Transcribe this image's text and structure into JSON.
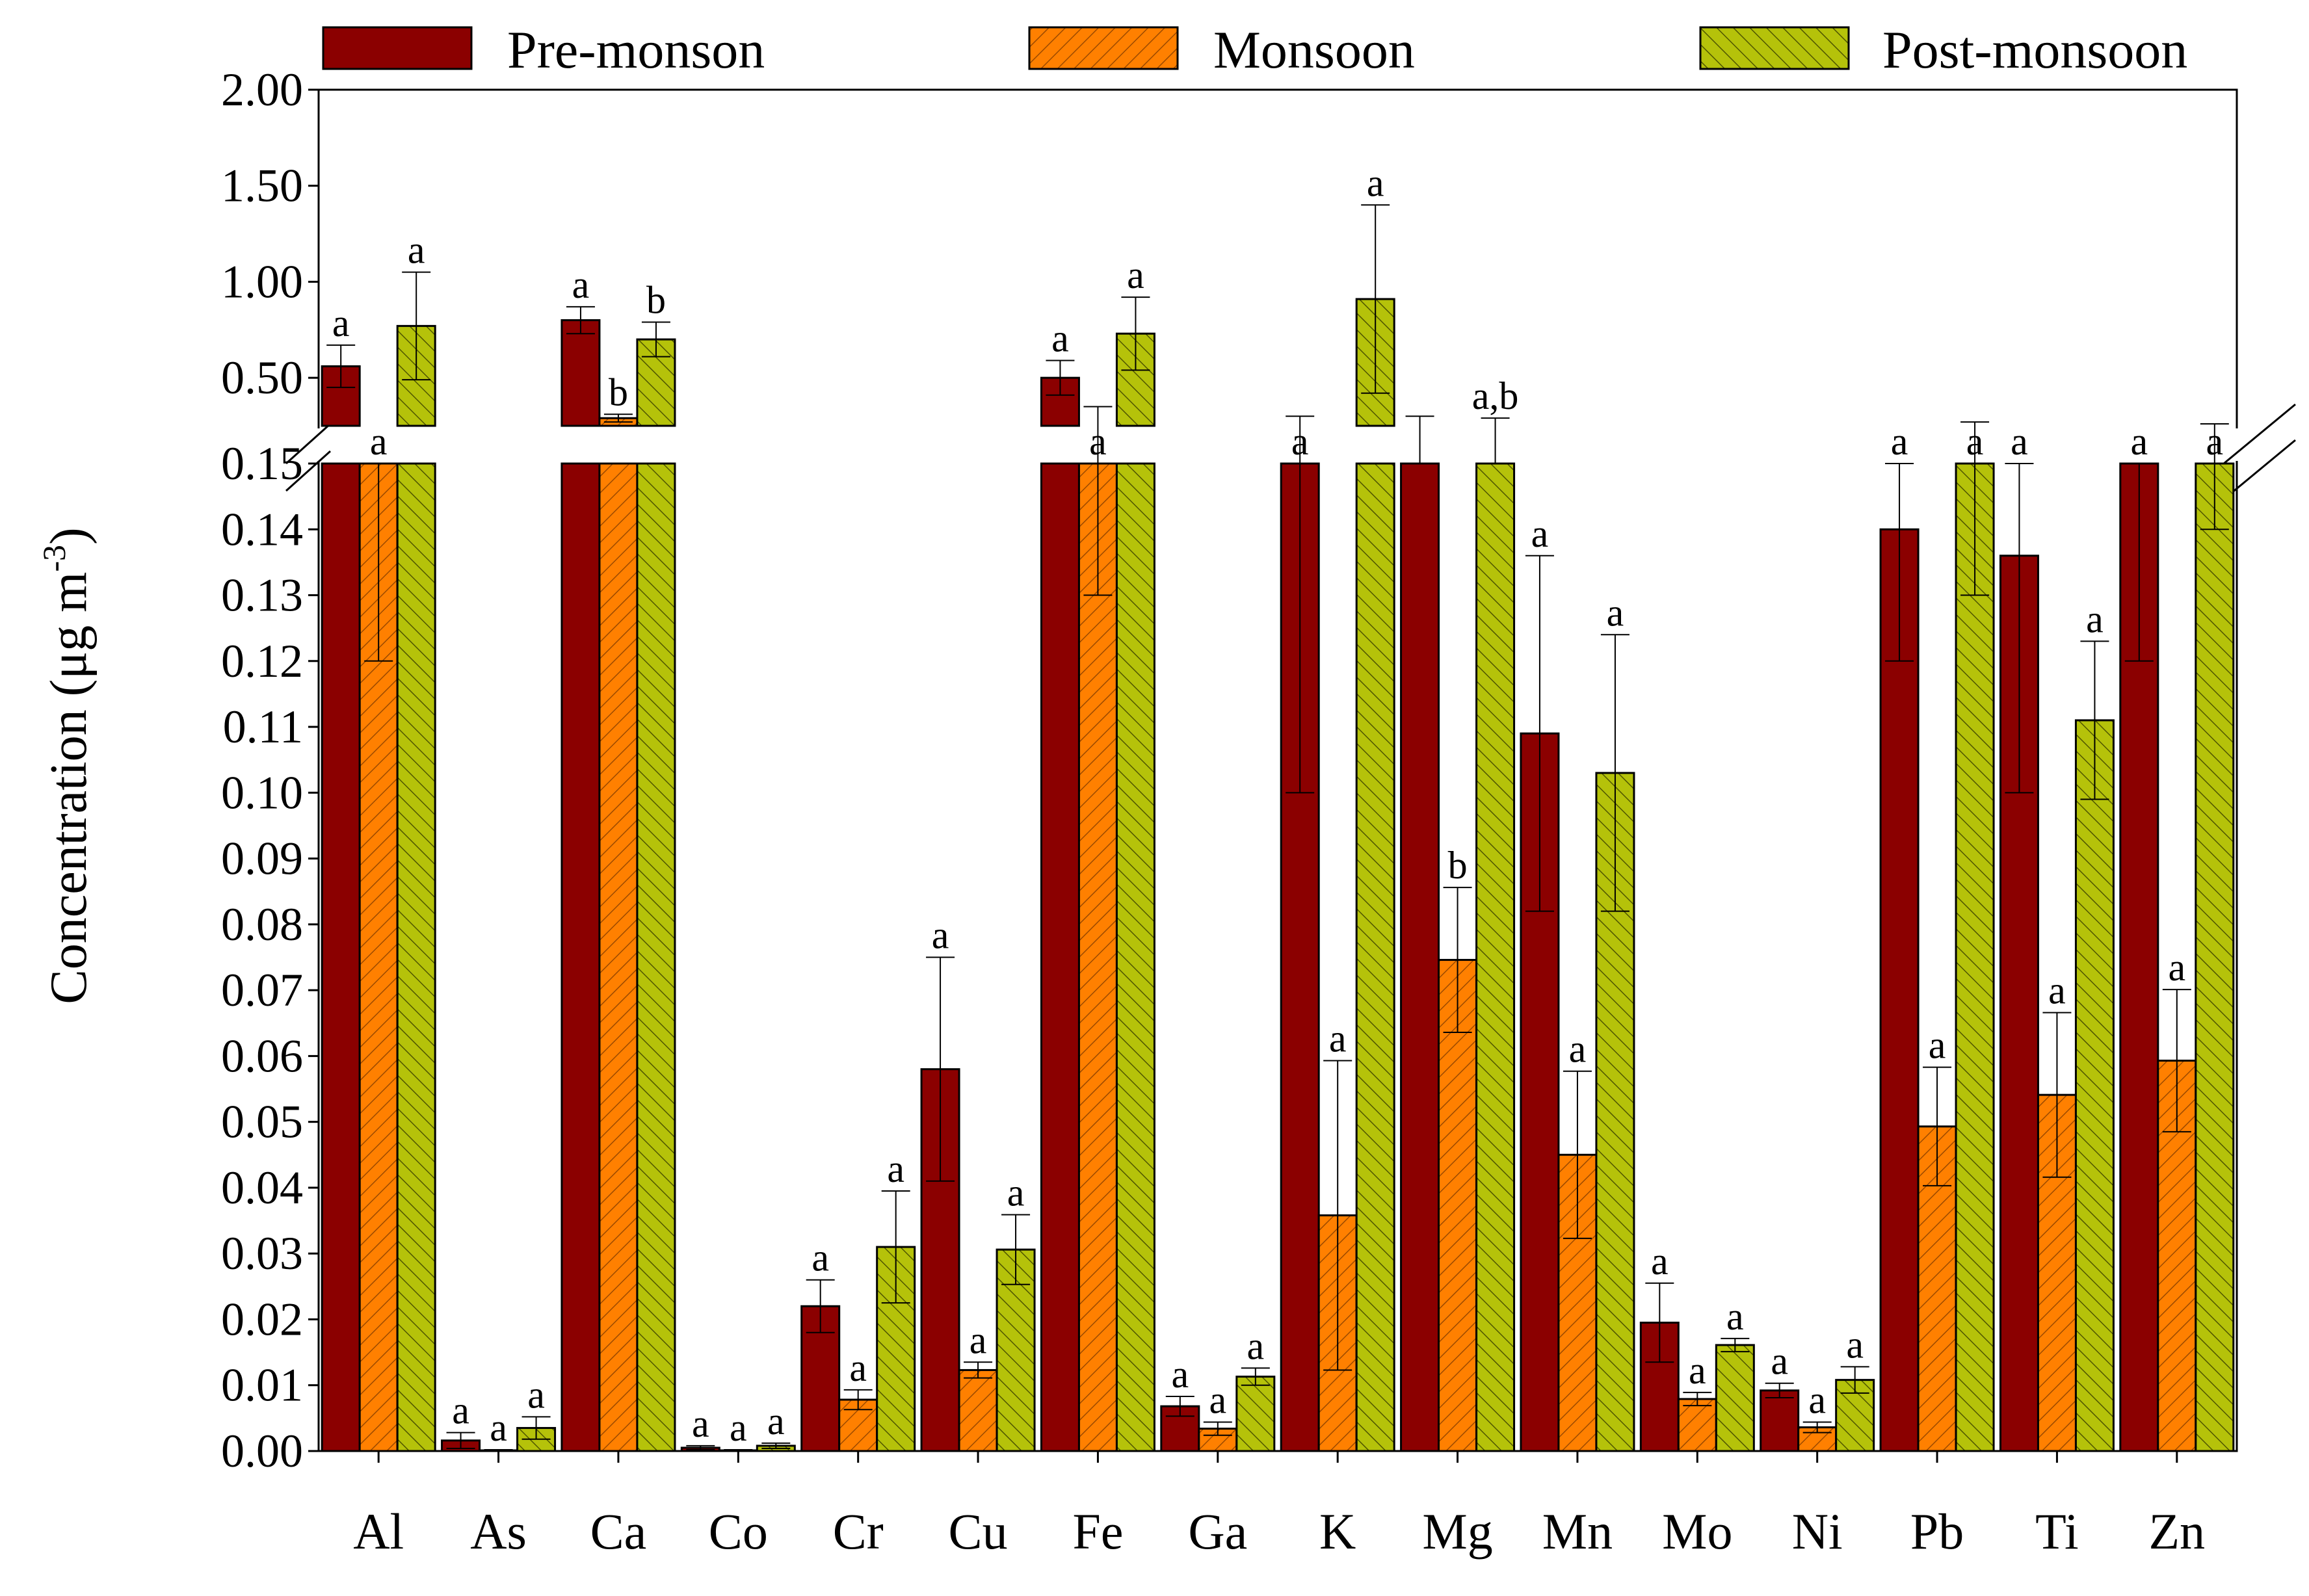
{
  "chart_data": {
    "type": "bar",
    "title": "",
    "xlabel": "",
    "ylabel": "Concentration (μg m",
    "ylabel_superscript": "-3",
    "ylabel_close": ")",
    "ylim_lower": [
      0,
      0.15
    ],
    "ylim_upper": [
      0.25,
      2.0
    ],
    "yticks_lower": [
      "0.00",
      "0.01",
      "0.02",
      "0.03",
      "0.04",
      "0.05",
      "0.06",
      "0.07",
      "0.08",
      "0.09",
      "0.10",
      "0.11",
      "0.12",
      "0.13",
      "0.14",
      "0.15"
    ],
    "yticks_upper": [
      "0.50",
      "1.00",
      "1.50",
      "2.00"
    ],
    "categories": [
      "Al",
      "As",
      "Ca",
      "Co",
      "Cr",
      "Cu",
      "Fe",
      "Ga",
      "K",
      "Mg",
      "Mn",
      "Mo",
      "Ni",
      "Pb",
      "Ti",
      "Zn"
    ],
    "legend_position": "top",
    "colors": {
      "pre": "#8b0000",
      "mon": "#ff8000",
      "post": "#b5c20a"
    },
    "series": [
      {
        "name": "Pre-monson",
        "values": [
          0.56,
          0.0016,
          0.8,
          0.0005,
          0.022,
          0.058,
          0.5,
          0.0068,
          0.2,
          0.24,
          0.109,
          0.0195,
          0.0092,
          0.14,
          0.136,
          0.165
        ],
        "errors": [
          0.11,
          0.0012,
          0.07,
          0.0003,
          0.004,
          0.017,
          0.09,
          0.0015,
          0.1,
          0.06,
          0.027,
          0.006,
          0.0011,
          0.02,
          0.036,
          0.045
        ],
        "labels": [
          "a",
          "a",
          "a",
          "a",
          "a",
          "a",
          "a",
          "a",
          "a",
          "",
          "a",
          "a",
          "a",
          "a",
          "a",
          "a"
        ]
      },
      {
        "name": "Monsoon",
        "values": [
          0.18,
          0.0001,
          0.29,
          0.0001,
          0.0078,
          0.0123,
          0.24,
          0.0034,
          0.0358,
          0.0746,
          0.045,
          0.0079,
          0.0036,
          0.0493,
          0.0541,
          0.0593
        ],
        "errors": [
          0.06,
          0.0001,
          0.02,
          0.0001,
          0.0015,
          0.0012,
          0.11,
          0.001,
          0.0235,
          0.011,
          0.0127,
          0.001,
          0.0008,
          0.009,
          0.0125,
          0.0108
        ],
        "labels": [
          "a",
          "a",
          "b",
          "a",
          "a",
          "a",
          "a",
          "a",
          "a",
          "b",
          "a",
          "a",
          "a",
          "a",
          "a",
          "a"
        ]
      },
      {
        "name": "Post-monsoon",
        "values": [
          0.77,
          0.0035,
          0.7,
          0.0008,
          0.031,
          0.0306,
          0.73,
          0.0113,
          0.91,
          0.25,
          0.103,
          0.0161,
          0.0108,
          0.2,
          0.111,
          0.2
        ],
        "errors": [
          0.28,
          0.0017,
          0.09,
          0.0004,
          0.0085,
          0.0053,
          0.19,
          0.0013,
          0.49,
          0.04,
          0.021,
          0.001,
          0.002,
          0.07,
          0.012,
          0.06
        ],
        "labels": [
          "a",
          "a",
          "b",
          "a",
          "a",
          "a",
          "a",
          "a",
          "a",
          "a,b",
          "a",
          "a",
          "a",
          "a",
          "a",
          "a"
        ]
      }
    ]
  }
}
